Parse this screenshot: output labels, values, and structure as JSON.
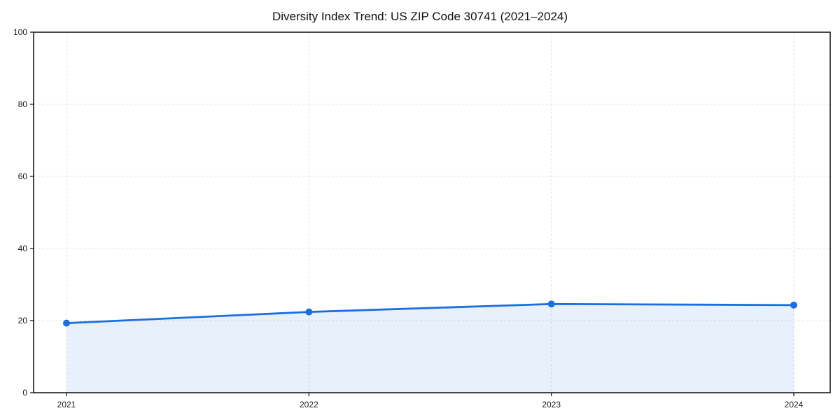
{
  "chart_data": {
    "type": "area",
    "title": "Diversity Index Trend: US ZIP Code 30741 (2021–2024)",
    "x": [
      "2021",
      "2022",
      "2023",
      "2024"
    ],
    "series": [
      {
        "name": "Diversity Index",
        "values": [
          19.3,
          22.4,
          24.6,
          24.3
        ]
      }
    ],
    "xlabel": "",
    "ylabel": "",
    "ylim": [
      0,
      100
    ],
    "yticks": [
      0,
      20,
      40,
      60,
      80,
      100
    ],
    "grid": true,
    "grid_style": "dashed",
    "legend_position": "none",
    "colors": {
      "line": "#1a6fe0",
      "marker": "#1a6fe0",
      "fill": "rgba(26, 111, 224, 0.10)",
      "axis": "#1a1a1a",
      "grid": "#e3e3e3",
      "background": "#ffffff"
    }
  }
}
